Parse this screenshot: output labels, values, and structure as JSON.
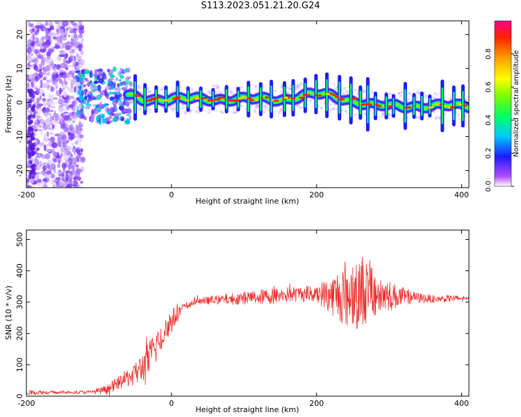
{
  "title": "S113.2023.051.21.20.G24",
  "colors": {
    "snr_line": "#ee2b2b",
    "axis": "#000000",
    "background": "#ffffff"
  },
  "chart_data": [
    {
      "type": "heatmap",
      "xlabel": "Height of straight line (km)",
      "ylabel": "Frequency (Hz)",
      "xlim": [
        -200,
        410
      ],
      "ylim": [
        -25,
        24
      ],
      "x_ticks": [
        "-200",
        "0",
        "200",
        "400"
      ],
      "x_tick_values": [
        -200,
        0,
        200,
        400
      ],
      "y_ticks": [
        "-20",
        "-10",
        "0",
        "10",
        "20"
      ],
      "y_tick_values": [
        -20,
        -10,
        0,
        10,
        20
      ],
      "ridge": {
        "x": [
          -60,
          -40,
          -20,
          0,
          20,
          40,
          60,
          80,
          100,
          120,
          140,
          160,
          180,
          200,
          220,
          240,
          260,
          280,
          300,
          320,
          340,
          360,
          380,
          400,
          410
        ],
        "y": [
          2,
          1,
          1,
          1,
          1,
          1,
          1,
          1,
          1,
          1,
          1,
          1,
          2,
          2.5,
          2,
          1,
          0,
          -1,
          -1,
          -1,
          -1,
          -1,
          -1,
          -1,
          -1
        ]
      },
      "colorbar": {
        "label": "Normalized spectral amplitude",
        "range": [
          0.0,
          1.0
        ],
        "ticks": [
          "0.0",
          "0.2",
          "0.4",
          "0.6",
          "0.8"
        ],
        "tick_values": [
          0.0,
          0.2,
          0.4,
          0.6,
          0.8
        ]
      }
    },
    {
      "type": "line",
      "xlabel": "Height of straight line (km)",
      "ylabel": "SNR (10 * v/v)",
      "xlim": [
        -200,
        410
      ],
      "ylim": [
        0,
        530
      ],
      "x_ticks": [
        "-200",
        "0",
        "200",
        "400"
      ],
      "x_tick_values": [
        -200,
        0,
        200,
        400
      ],
      "y_ticks": [
        "0",
        "100",
        "200",
        "300",
        "400",
        "500"
      ],
      "y_tick_values": [
        0,
        100,
        200,
        300,
        400,
        500
      ],
      "series": [
        {
          "x": [
            -200,
            -150,
            -110,
            -90,
            -75,
            -60,
            -45,
            -30,
            -15,
            0,
            15,
            30,
            50,
            80,
            110,
            140,
            170,
            200,
            220,
            240,
            260,
            280,
            300,
            330,
            360,
            390,
            410
          ],
          "values": [
            12,
            12,
            13,
            20,
            40,
            60,
            80,
            120,
            190,
            240,
            280,
            300,
            305,
            310,
            315,
            320,
            325,
            330,
            320,
            330,
            340,
            330,
            320,
            315,
            310,
            312,
            310
          ],
          "amplitude": [
            8,
            5,
            6,
            15,
            20,
            30,
            45,
            60,
            60,
            40,
            15,
            12,
            12,
            18,
            22,
            26,
            24,
            30,
            60,
            110,
            120,
            90,
            50,
            20,
            12,
            10,
            10
          ]
        }
      ]
    }
  ]
}
